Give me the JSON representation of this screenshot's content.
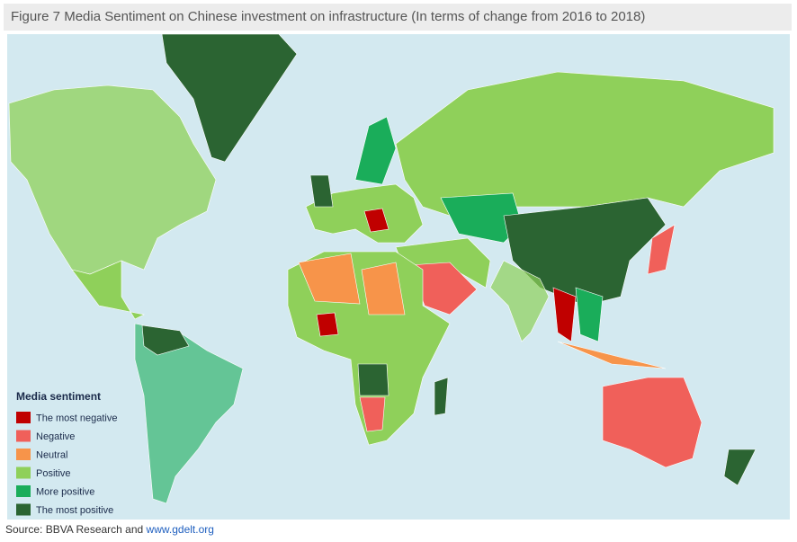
{
  "title": "Figure 7 Media Sentiment on Chinese investment on infrastructure (In terms of change from 2016 to 2018)",
  "legend": {
    "title": "Media sentiment",
    "items": [
      {
        "label": "The most negative",
        "color": "#c00000"
      },
      {
        "label": "Negative",
        "color": "#f0605a"
      },
      {
        "label": "Neutral",
        "color": "#f7944a"
      },
      {
        "label": "Positive",
        "color": "#8fd05a"
      },
      {
        "label": "More positive",
        "color": "#1aad5a"
      },
      {
        "label": "The most positive",
        "color": "#2b6432"
      }
    ]
  },
  "source": {
    "text": "Source: BBVA Research and",
    "link": "www.gdelt.org"
  }
}
